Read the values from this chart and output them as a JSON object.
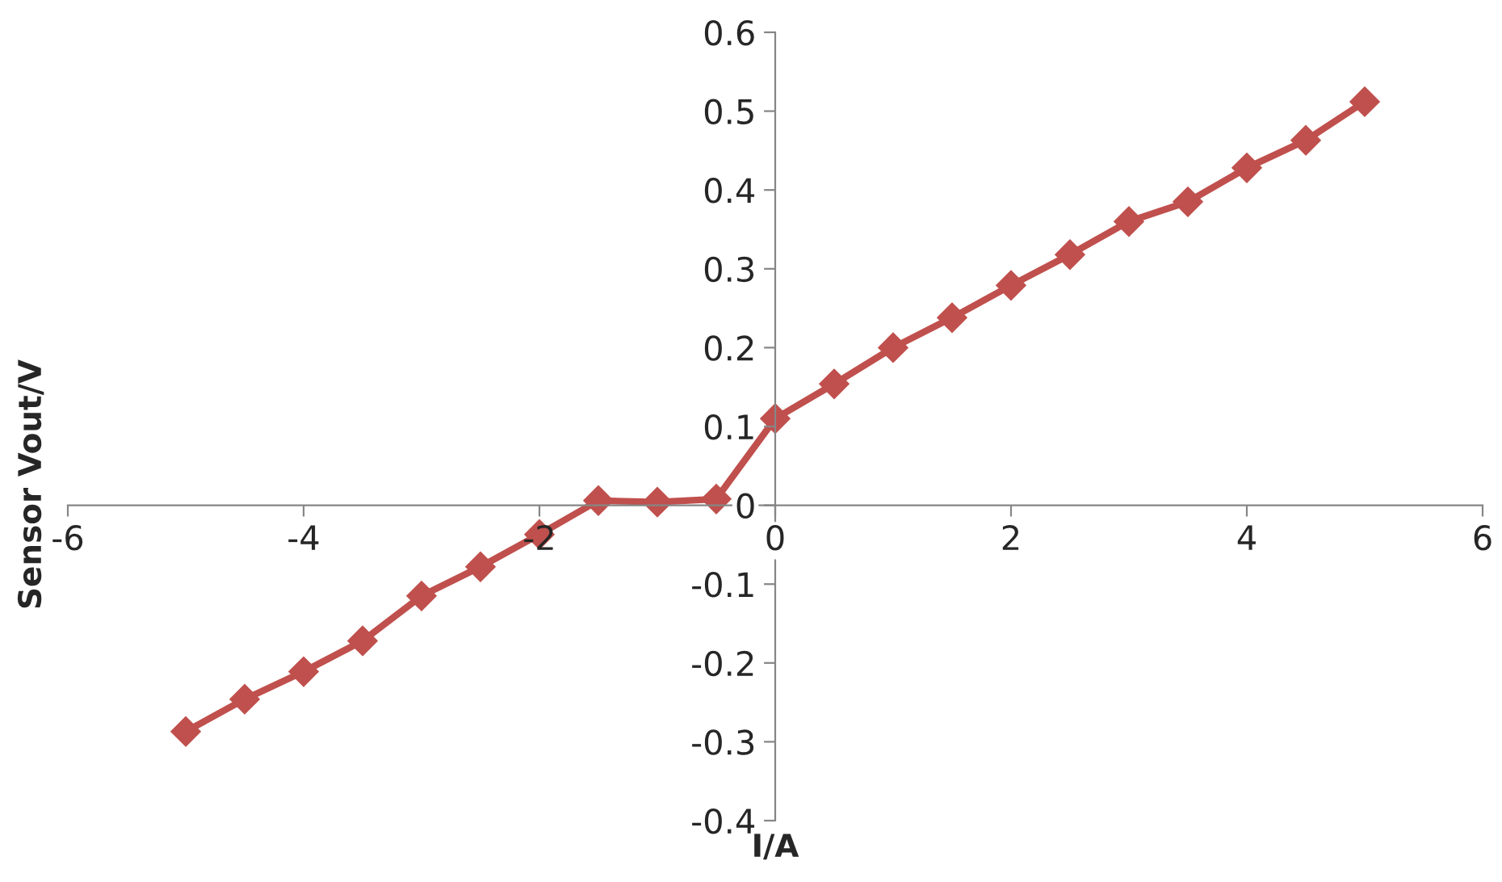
{
  "chart_data": {
    "type": "line",
    "xlabel": "I/A",
    "ylabel": "Sensor Vout/V",
    "x": [
      -5,
      -4.5,
      -4,
      -3.5,
      -3,
      -2.5,
      -2,
      -1.5,
      -1,
      -0.5,
      0,
      0.5,
      1,
      1.5,
      2,
      2.5,
      3,
      3.5,
      4,
      4.5,
      5
    ],
    "series": [
      {
        "color": "#c0504d",
        "values": [
          -0.287,
          -0.246,
          -0.211,
          -0.172,
          -0.115,
          -0.078,
          -0.037,
          0.006,
          0.004,
          0.008,
          0.11,
          0.154,
          0.2,
          0.238,
          0.279,
          0.318,
          0.36,
          0.385,
          0.428,
          0.463,
          0.512
        ]
      }
    ],
    "xlim": [
      -6,
      6
    ],
    "xticks": [
      -6,
      -4,
      -2,
      0,
      2,
      4,
      6
    ],
    "ylim": [
      -0.4,
      0.6
    ],
    "yticks": [
      -0.4,
      -0.3,
      -0.2,
      -0.1,
      0,
      0.1,
      0.2,
      0.3,
      0.4,
      0.5,
      0.6
    ],
    "marker": "diamond",
    "line_style": "solid",
    "grid": false,
    "legend": false
  }
}
